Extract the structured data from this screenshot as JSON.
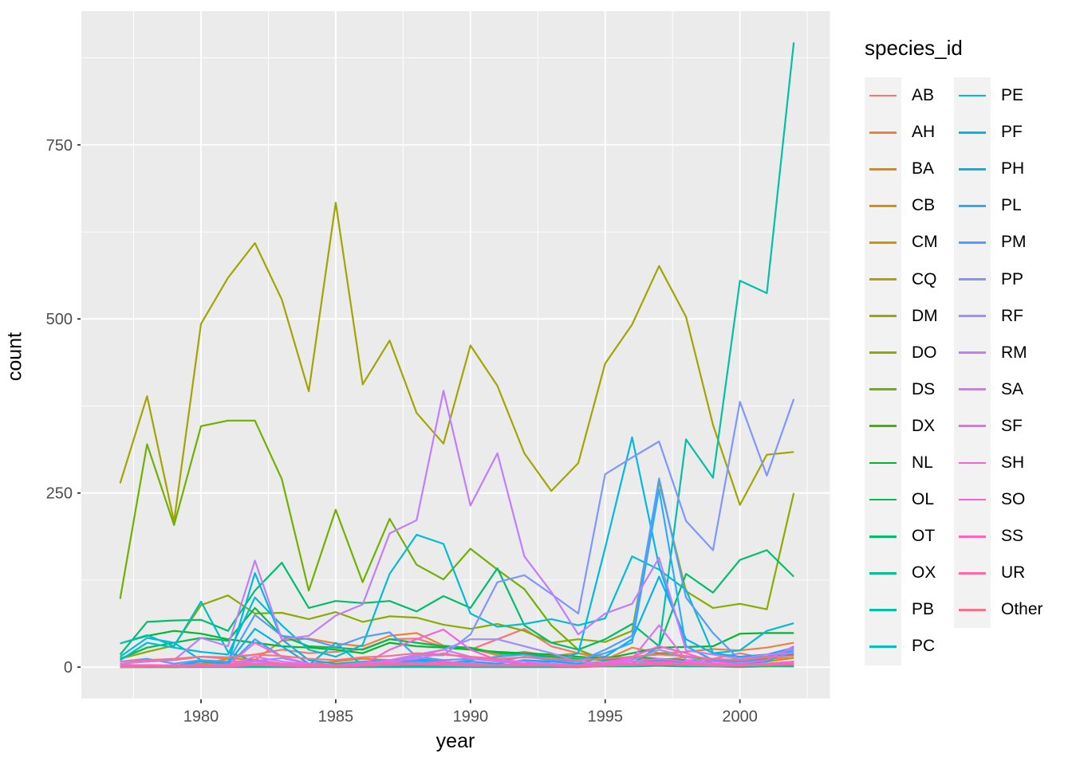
{
  "colors": {
    "background": "#FFFFFF",
    "panel_bg": "#EBEBEB",
    "grid": "#FFFFFF",
    "tick_mark": "#333333",
    "tick_label": "#4D4D4D",
    "axis_title": "#000000",
    "legend_key_bg": "#F2F2F2"
  },
  "legend": {
    "title": "species_id",
    "position": "right",
    "columns": [
      [
        "AB",
        "AH",
        "BA",
        "CB",
        "CM",
        "CQ",
        "DM",
        "DO",
        "DS",
        "DX",
        "NL",
        "OL",
        "OT",
        "OX",
        "PB",
        "PC"
      ],
      [
        "PE",
        "PF",
        "PH",
        "PL",
        "PM",
        "PP",
        "RF",
        "RM",
        "SA",
        "SF",
        "SH",
        "SO",
        "SS",
        "UR",
        "Other"
      ]
    ]
  },
  "chart_data": {
    "type": "line",
    "title": "",
    "xlabel": "year",
    "ylabel": "count",
    "x": [
      1977,
      1978,
      1979,
      1980,
      1981,
      1982,
      1983,
      1984,
      1985,
      1986,
      1987,
      1988,
      1989,
      1990,
      1991,
      1992,
      1993,
      1994,
      1995,
      1996,
      1997,
      1998,
      1999,
      2000,
      2001,
      2002
    ],
    "x_ticks": [
      1980,
      1985,
      1990,
      1995,
      2000
    ],
    "x_minor": [
      1977.5,
      1982.5,
      1987.5,
      1992.5,
      1997.5,
      2002.5
    ],
    "y_ticks": [
      0,
      250,
      500,
      750
    ],
    "y_minor": [
      125,
      375,
      625,
      875
    ],
    "xlim": [
      1975.56,
      2003.34
    ],
    "ylim": [
      -45,
      942
    ],
    "grid": true,
    "series": [
      {
        "name": "AB",
        "color": "#F8766D",
        "values": [
          5,
          8,
          10,
          15,
          12,
          18,
          25,
          20,
          22,
          26,
          40,
          41,
          29,
          25,
          40,
          55,
          30,
          20,
          15,
          12,
          10,
          14,
          12,
          20,
          12,
          13
        ]
      },
      {
        "name": "AH",
        "color": "#ED8141",
        "values": [
          2,
          2,
          2,
          5,
          7,
          10,
          38,
          41,
          34,
          30,
          45,
          49,
          31,
          27,
          17,
          22,
          16,
          20,
          11,
          28,
          20,
          22,
          26,
          24,
          28,
          35
        ]
      },
      {
        "name": "BA",
        "color": "#E38900",
        "values": [
          0,
          0,
          0,
          1,
          1,
          2,
          3,
          5,
          8,
          12,
          10,
          8,
          5,
          3,
          2,
          1,
          1,
          0,
          1,
          1,
          2,
          1,
          1,
          0,
          1,
          1
        ]
      },
      {
        "name": "CB",
        "color": "#DA8E00",
        "values": [
          1,
          1,
          2,
          2,
          3,
          3,
          2,
          2,
          1,
          2,
          3,
          4,
          3,
          2,
          2,
          3,
          2,
          1,
          2,
          3,
          4,
          3,
          2,
          2,
          3,
          4
        ]
      },
      {
        "name": "CM",
        "color": "#CC9600",
        "values": [
          1,
          2,
          1,
          2,
          2,
          3,
          2,
          1,
          1,
          1,
          2,
          2,
          1,
          1,
          1,
          2,
          1,
          1,
          1,
          2,
          2,
          1,
          1,
          1,
          1,
          2
        ]
      },
      {
        "name": "CQ",
        "color": "#BA9E00",
        "values": [
          2,
          3,
          2,
          4,
          12,
          11,
          5,
          3,
          2,
          3,
          4,
          5,
          3,
          2,
          2,
          3,
          2,
          2,
          3,
          4,
          5,
          3,
          2,
          5,
          8,
          13
        ]
      },
      {
        "name": "DM",
        "color": "#A2A500",
        "values": [
          264,
          389,
          209,
          493,
          559,
          609,
          528,
          396,
          667,
          406,
          469,
          365,
          321,
          462,
          404,
          307,
          253,
          293,
          436,
          492,
          576,
          503,
          348,
          233,
          305,
          309
        ]
      },
      {
        "name": "DO",
        "color": "#8AAB00",
        "values": [
          12,
          22,
          31,
          89,
          103,
          77,
          78,
          69,
          79,
          65,
          73,
          71,
          61,
          55,
          62,
          52,
          35,
          40,
          36,
          52,
          266,
          109,
          85,
          91,
          83,
          250
        ]
      },
      {
        "name": "DS",
        "color": "#6FB000",
        "values": [
          98,
          320,
          204,
          346,
          354,
          354,
          270,
          110,
          226,
          122,
          213,
          147,
          126,
          170,
          140,
          112,
          60,
          25,
          10,
          4,
          2,
          2,
          1,
          1,
          1,
          1
        ]
      },
      {
        "name": "DX",
        "color": "#44B400",
        "values": [
          0,
          1,
          0,
          1,
          1,
          2,
          1,
          1,
          0,
          1,
          1,
          2,
          1,
          1,
          2,
          3,
          2,
          5,
          8,
          12,
          20,
          15,
          10,
          8,
          12,
          20
        ]
      },
      {
        "name": "NL",
        "color": "#00B92A",
        "values": [
          34,
          45,
          52,
          48,
          40,
          35,
          30,
          28,
          25,
          20,
          35,
          30,
          28,
          25,
          22,
          20,
          18,
          15,
          12,
          20,
          28,
          29,
          30,
          48,
          49,
          49
        ]
      },
      {
        "name": "OL",
        "color": "#00BC51",
        "values": [
          12,
          28,
          35,
          42,
          38,
          85,
          45,
          30,
          28,
          25,
          40,
          35,
          30,
          28,
          20,
          18,
          15,
          12,
          10,
          15,
          12,
          10,
          8,
          12,
          15,
          18
        ]
      },
      {
        "name": "OT",
        "color": "#00BE6C",
        "values": [
          18,
          65,
          67,
          68,
          52,
          110,
          150,
          85,
          95,
          92,
          95,
          80,
          102,
          85,
          142,
          60,
          35,
          25,
          40,
          62,
          30,
          134,
          107,
          154,
          168,
          130
        ]
      },
      {
        "name": "OX",
        "color": "#00C08D",
        "values": [
          1,
          2,
          1,
          2,
          1,
          3,
          2,
          1,
          1,
          2,
          1,
          2,
          1,
          1,
          2,
          1,
          1,
          2,
          1,
          1,
          2,
          1,
          1,
          1,
          2,
          1
        ]
      },
      {
        "name": "PB",
        "color": "#00C0A7",
        "values": [
          0,
          0,
          0,
          0,
          0,
          0,
          0,
          0,
          0,
          0,
          0,
          0,
          0,
          0,
          0,
          0,
          0,
          0,
          3,
          5,
          30,
          327,
          272,
          555,
          537,
          897
        ]
      },
      {
        "name": "PC",
        "color": "#00BFBF",
        "values": [
          34,
          46,
          30,
          94,
          22,
          8,
          5,
          3,
          35,
          2,
          3,
          2,
          2,
          1,
          2,
          3,
          2,
          2,
          5,
          8,
          10,
          6,
          4,
          3,
          5,
          8
        ]
      },
      {
        "name": "PE",
        "color": "#00BDD2",
        "values": [
          10,
          35,
          28,
          22,
          18,
          100,
          60,
          25,
          15,
          32,
          134,
          190,
          177,
          77,
          58,
          62,
          69,
          60,
          70,
          159,
          140,
          111,
          20,
          24,
          52,
          63
        ]
      },
      {
        "name": "PF",
        "color": "#00B9E0",
        "values": [
          15,
          42,
          35,
          10,
          5,
          135,
          40,
          10,
          5,
          8,
          10,
          12,
          8,
          5,
          3,
          5,
          8,
          20,
          171,
          330,
          145,
          30,
          10,
          5,
          8,
          25
        ]
      },
      {
        "name": "PH",
        "color": "#00B3F2",
        "values": [
          2,
          3,
          2,
          8,
          5,
          55,
          30,
          5,
          3,
          5,
          8,
          10,
          5,
          8,
          5,
          10,
          8,
          5,
          15,
          40,
          130,
          40,
          20,
          15,
          18,
          28
        ]
      },
      {
        "name": "PL",
        "color": "#2FA9FC",
        "values": [
          2,
          2,
          1,
          3,
          2,
          40,
          15,
          3,
          2,
          3,
          5,
          8,
          5,
          10,
          15,
          18,
          12,
          10,
          20,
          35,
          255,
          30,
          10,
          8,
          10,
          22
        ]
      },
      {
        "name": "PM",
        "color": "#559CFF",
        "values": [
          8,
          12,
          5,
          10,
          8,
          75,
          45,
          40,
          29,
          43,
          50,
          15,
          10,
          12,
          8,
          15,
          10,
          8,
          25,
          45,
          271,
          100,
          49,
          10,
          15,
          25
        ]
      },
      {
        "name": "PP",
        "color": "#7F96FF",
        "values": [
          4,
          2,
          2,
          4,
          2,
          9,
          13,
          5,
          2,
          7,
          6,
          17,
          17,
          47,
          122,
          132,
          105,
          77,
          277,
          301,
          324,
          210,
          168,
          381,
          275,
          385
        ]
      },
      {
        "name": "RF",
        "color": "#9F8EFF",
        "values": [
          1,
          1,
          1,
          2,
          2,
          8,
          5,
          2,
          2,
          3,
          5,
          15,
          25,
          40,
          40,
          30,
          20,
          8,
          5,
          10,
          25,
          15,
          5,
          3,
          5,
          8
        ]
      },
      {
        "name": "RM",
        "color": "#C27DFF",
        "values": [
          5,
          8,
          10,
          42,
          30,
          153,
          40,
          45,
          74,
          90,
          192,
          211,
          397,
          232,
          307,
          159,
          108,
          47,
          77,
          91,
          157,
          24,
          18,
          12,
          18,
          20
        ]
      },
      {
        "name": "SA",
        "color": "#D973F8",
        "values": [
          1,
          2,
          1,
          3,
          2,
          15,
          8,
          4,
          2,
          5,
          10,
          18,
          25,
          15,
          10,
          8,
          5,
          3,
          8,
          12,
          60,
          10,
          5,
          3,
          5,
          8
        ]
      },
      {
        "name": "SF",
        "color": "#E96CEC",
        "values": [
          2,
          3,
          2,
          3,
          2,
          35,
          15,
          5,
          3,
          5,
          8,
          12,
          20,
          12,
          8,
          5,
          3,
          3,
          5,
          8,
          12,
          8,
          5,
          3,
          5,
          8
        ]
      },
      {
        "name": "SH",
        "color": "#F562DF",
        "values": [
          1,
          2,
          1,
          2,
          2,
          10,
          5,
          2,
          2,
          3,
          25,
          40,
          54,
          25,
          10,
          5,
          3,
          2,
          5,
          15,
          30,
          20,
          8,
          5,
          10,
          30
        ]
      },
      {
        "name": "SO",
        "color": "#FB62CE",
        "values": [
          0,
          1,
          1,
          1,
          1,
          3,
          2,
          1,
          1,
          2,
          3,
          5,
          8,
          5,
          3,
          2,
          2,
          1,
          3,
          5,
          8,
          5,
          3,
          2,
          4,
          6
        ]
      },
      {
        "name": "SS",
        "color": "#FE64BA",
        "values": [
          2,
          2,
          3,
          3,
          4,
          5,
          4,
          3,
          3,
          4,
          5,
          6,
          5,
          4,
          3,
          4,
          3,
          3,
          4,
          5,
          6,
          5,
          4,
          3,
          4,
          5
        ]
      },
      {
        "name": "UR",
        "color": "#FF68A2",
        "values": [
          1,
          1,
          1,
          2,
          2,
          3,
          2,
          2,
          1,
          2,
          3,
          4,
          3,
          2,
          2,
          2,
          2,
          1,
          2,
          3,
          4,
          3,
          2,
          2,
          3,
          4
        ]
      },
      {
        "name": "Other",
        "color": "#FC6F88",
        "values": [
          8,
          10,
          12,
          15,
          14,
          18,
          16,
          12,
          10,
          14,
          16,
          20,
          18,
          15,
          12,
          14,
          12,
          10,
          12,
          15,
          18,
          16,
          12,
          10,
          14,
          16
        ]
      }
    ]
  }
}
